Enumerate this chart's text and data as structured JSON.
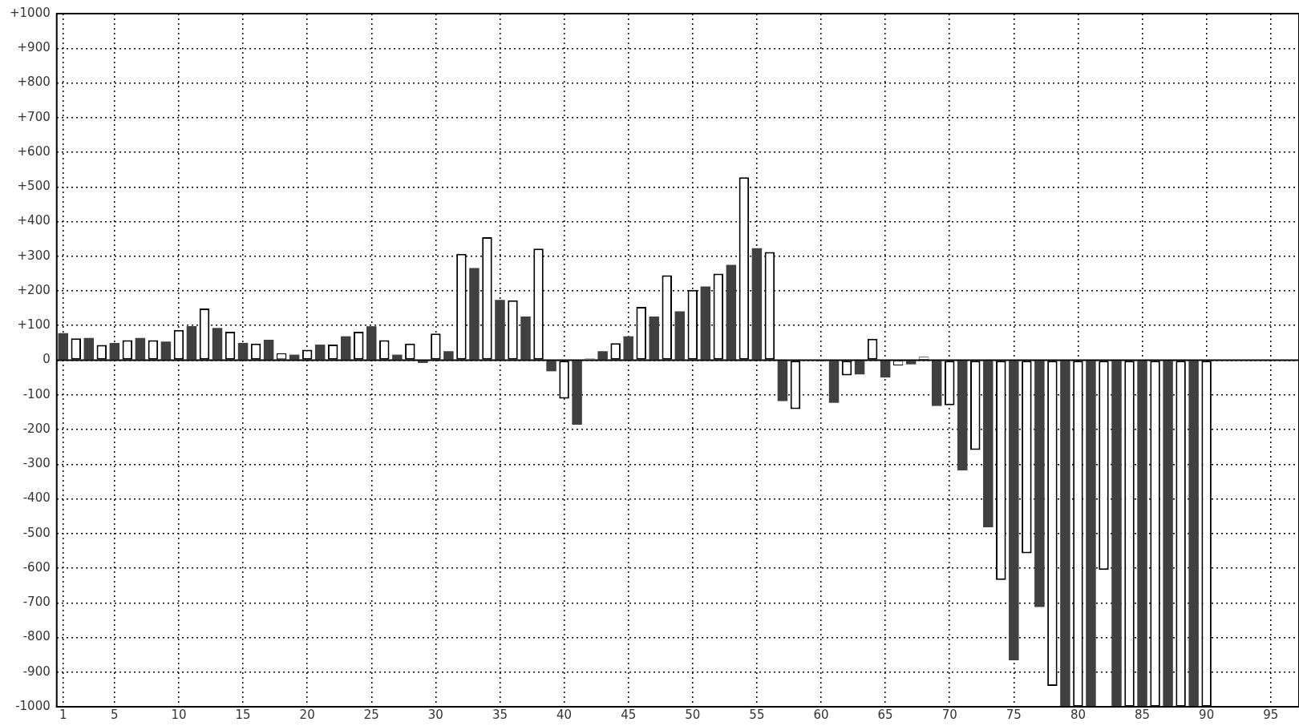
{
  "chart_data": {
    "type": "bar",
    "x": [
      1,
      2,
      3,
      4,
      5,
      6,
      7,
      8,
      9,
      10,
      11,
      12,
      13,
      14,
      15,
      16,
      17,
      18,
      19,
      20,
      21,
      22,
      23,
      24,
      25,
      26,
      27,
      28,
      29,
      30,
      31,
      32,
      33,
      34,
      35,
      36,
      37,
      38,
      39,
      40,
      41,
      42,
      43,
      44,
      45,
      46,
      47,
      48,
      49,
      50,
      51,
      52,
      53,
      54,
      55,
      56,
      57,
      58,
      59,
      60,
      61,
      62,
      63,
      64,
      65,
      66,
      67,
      68,
      69,
      70,
      71,
      72,
      73,
      74,
      75,
      76,
      77,
      78,
      79,
      80,
      81,
      82,
      83,
      84,
      85,
      86,
      87,
      88,
      89,
      90
    ],
    "values": [
      78,
      63,
      64,
      44,
      50,
      58,
      64,
      58,
      54,
      87,
      98,
      149,
      93,
      82,
      50,
      48,
      59,
      20,
      16,
      30,
      45,
      45,
      69,
      82,
      98,
      58,
      16,
      48,
      -8,
      77,
      26,
      307,
      266,
      355,
      174,
      173,
      126,
      322,
      -32,
      -111,
      -186,
      5,
      26,
      49,
      69,
      154,
      126,
      245,
      141,
      203,
      213,
      250,
      275,
      528,
      323,
      312,
      -118,
      -141,
      null,
      -6,
      -123,
      -44,
      -41,
      62,
      -50,
      -15,
      -12,
      10,
      -132,
      -130,
      -318,
      -259,
      -482,
      -634,
      -866,
      -557,
      -712,
      -940,
      -1000,
      -1000,
      -1000,
      -605,
      -1000,
      -1000,
      -1000,
      -1000,
      -1000,
      -1000,
      -1000,
      -1000
    ],
    "colors": [
      "#404040",
      "#ffffff",
      "#404040",
      "#ffffff",
      "#404040",
      "#ffffff",
      "#404040",
      "#ffffff",
      "#404040",
      "#ffffff",
      "#404040",
      "#ffffff",
      "#404040",
      "#ffffff",
      "#404040",
      "#ffffff",
      "#404040",
      "#ffffff",
      "#404040",
      "#ffffff",
      "#404040",
      "#ffffff",
      "#404040",
      "#ffffff",
      "#404040",
      "#ffffff",
      "#404040",
      "#ffffff",
      "#404040",
      "#ffffff",
      "#404040",
      "#ffffff",
      "#404040",
      "#ffffff",
      "#404040",
      "#ffffff",
      "#404040",
      "#ffffff",
      "#404040",
      "#ffffff",
      "#404040",
      "#ffffff",
      "#404040",
      "#ffffff",
      "#404040",
      "#ffffff",
      "#404040",
      "#ffffff",
      "#404040",
      "#ffffff",
      "#404040",
      "#ffffff",
      "#404040",
      "#ffffff",
      "#404040",
      "#ffffff",
      "#404040",
      "#ffffff",
      "#404040",
      "#ffffff",
      "#404040",
      "#ffffff",
      "#404040",
      "#ffffff",
      "#404040",
      "#ffffff",
      "#404040",
      "#ffffff",
      "#404040",
      "#ffffff",
      "#404040",
      "#ffffff",
      "#404040",
      "#ffffff",
      "#404040",
      "#ffffff",
      "#404040",
      "#ffffff",
      "#404040",
      "#ffffff",
      "#404040",
      "#ffffff",
      "#404040",
      "#ffffff",
      "#404040",
      "#ffffff",
      "#404040",
      "#ffffff",
      "#404040",
      "#ffffff"
    ],
    "xlim": [
      0.5,
      97.2
    ],
    "xticks": [
      1,
      5,
      10,
      15,
      20,
      25,
      30,
      35,
      40,
      45,
      50,
      55,
      60,
      65,
      70,
      75,
      80,
      85,
      90,
      95
    ],
    "ylim": [
      -1000,
      1000
    ],
    "yticks": [
      {
        "value": -1000,
        "label": "-1000"
      },
      {
        "value": -900,
        "label": "-900"
      },
      {
        "value": -800,
        "label": "-800"
      },
      {
        "value": -700,
        "label": "-700"
      },
      {
        "value": -600,
        "label": "-600"
      },
      {
        "value": -500,
        "label": "-500"
      },
      {
        "value": -400,
        "label": "-400"
      },
      {
        "value": -300,
        "label": "-300"
      },
      {
        "value": -200,
        "label": "-200"
      },
      {
        "value": -100,
        "label": "-100"
      },
      0,
      {
        "value": 100,
        "label": "+100"
      },
      {
        "value": 200,
        "label": "+200"
      },
      {
        "value": 300,
        "label": "+300"
      },
      {
        "value": 400,
        "label": "+400"
      },
      {
        "value": 500,
        "label": "+500"
      },
      {
        "value": 600,
        "label": "+600"
      },
      {
        "value": 700,
        "label": "+700"
      },
      {
        "value": 800,
        "label": "+800"
      },
      {
        "value": 900,
        "label": "+900"
      },
      {
        "value": 1000,
        "label": "+1000"
      }
    ],
    "grid": true,
    "legend": false
  }
}
